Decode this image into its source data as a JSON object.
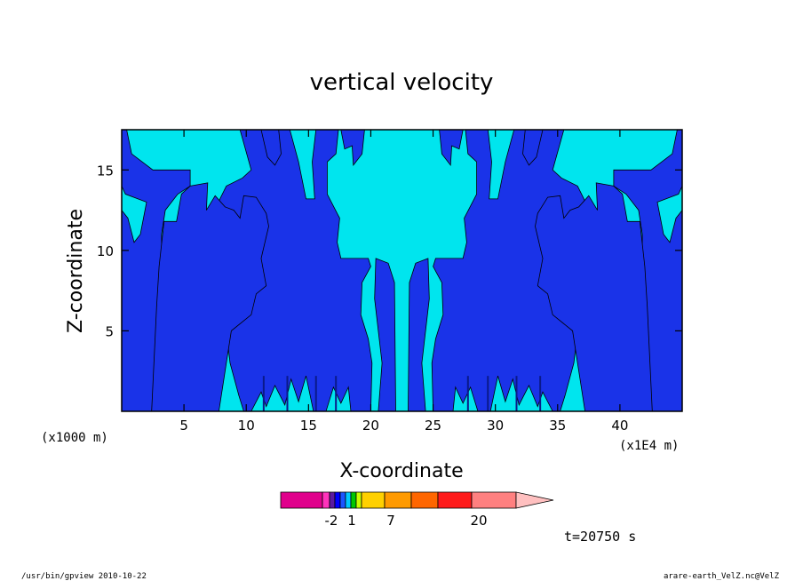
{
  "chart_data": {
    "type": "heatmap",
    "title": "vertical velocity",
    "xlabel": "X-coordinate",
    "ylabel": "Z-coordinate",
    "x_unit": "(x1E4 m)",
    "y_unit": "(x1000 m)",
    "x_ticks": [
      "5",
      "10",
      "15",
      "20",
      "25",
      "30",
      "35",
      "40"
    ],
    "y_ticks": [
      "5",
      "10",
      "15"
    ],
    "xlim": [
      0,
      45
    ],
    "ylim": [
      0,
      17.5
    ],
    "colors": {
      "lowest": "#dd00bb",
      "negative": "#1a33e8",
      "near_zero_negative": "#00e5ee",
      "positive": "#ffcc00",
      "strong": "#ff2020",
      "strongest": "#ff8080"
    },
    "colorbar": {
      "labels": [
        "-2",
        "1",
        "7",
        "20"
      ],
      "colors": [
        "#e0008c",
        "#ff33bb",
        "#5a1aa0",
        "#0000ff",
        "#1a55ff",
        "#00c8ff",
        "#00c800",
        "#c8ff00",
        "#ffd000",
        "#ff9a00",
        "#ff6600",
        "#ff1a1a",
        "#ff8080",
        "#ffc0c0"
      ]
    }
  },
  "time_label": "t=20750 s",
  "footer": {
    "left": "/usr/bin/gpview   2010-10-22",
    "right": "arare-earth_VelZ.nc@VelZ"
  }
}
